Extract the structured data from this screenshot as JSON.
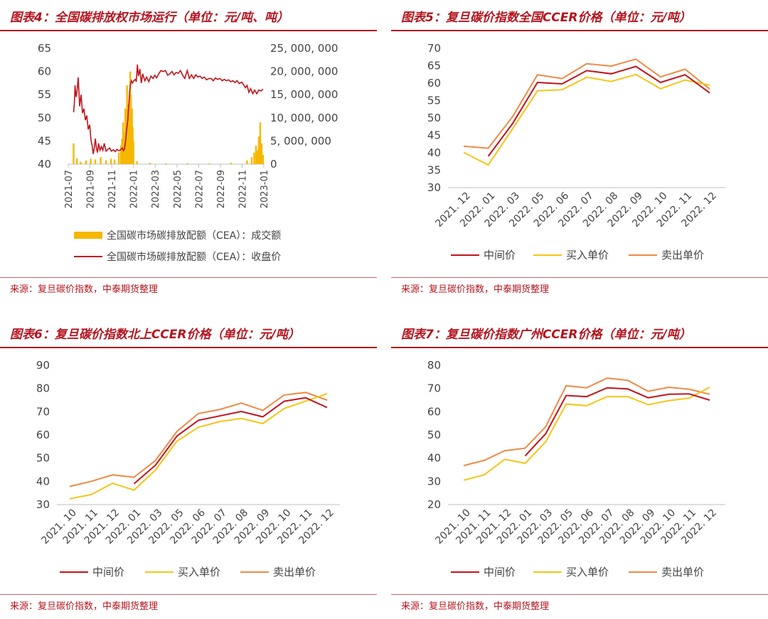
{
  "panels": [
    {
      "title": "图表4：全国碳排放权市场运行（单位：元/吨、吨）",
      "source": "来源：复旦碳价指数，中泰期货整理"
    },
    {
      "title": "图表5：复旦碳价指数全国CCER价格（单位：元/吨）",
      "source": "来源：复旦碳价指数，中泰期货整理"
    },
    {
      "title": "图表6：复旦碳价指数北上CCER价格（单位：元/吨）",
      "source": "来源：复旦碳价指数，中泰期货整理"
    },
    {
      "title": "图表7：复旦碳价指数广州CCER价格（单位：元/吨）",
      "source": "来源：复旦碳价指数，中泰期货整理"
    }
  ],
  "colors": {
    "mid": "#c0141c",
    "buy": "#f5c518",
    "sell": "#ee8a45",
    "volume": "#f5b800",
    "axis": "#bfbfbf",
    "text": "#444444"
  },
  "chart_data": [
    {
      "type": "bar+line",
      "title": "图表4：全国碳排放权市场运行（单位：元/吨、吨）",
      "x_ticks": [
        "2021-07",
        "2021-09",
        "2021-11",
        "2022-01",
        "2022-03",
        "2022-05",
        "2022-07",
        "2022-09",
        "2022-11",
        "2023-01"
      ],
      "y_left_ticks": [
        "40",
        "45",
        "50",
        "55",
        "60",
        "65"
      ],
      "y_left_range": [
        40,
        65
      ],
      "y_right_ticks": [
        "0",
        "5, 000, 000",
        "10, 000, 000",
        "15, 000, 000",
        "20, 000, 000",
        "25, 000, 000"
      ],
      "y_right_range": [
        0,
        25000000
      ],
      "legend": [
        "全国碳市场碳排放配额（CEA）：成交额",
        "全国碳市场碳排放配额（CEA）：收盘价"
      ],
      "close_price": [
        [
          "2021-07-16",
          51.2
        ],
        [
          "2021-07-18",
          53
        ],
        [
          "2021-07-20",
          57
        ],
        [
          "2021-07-23",
          54.5
        ],
        [
          "2021-07-26",
          56
        ],
        [
          "2021-07-29",
          58.7
        ],
        [
          "2021-08-02",
          52.5
        ],
        [
          "2021-08-06",
          55
        ],
        [
          "2021-08-10",
          51
        ],
        [
          "2021-08-14",
          52
        ],
        [
          "2021-08-18",
          49.5
        ],
        [
          "2021-08-22",
          50.5
        ],
        [
          "2021-08-26",
          47.5
        ],
        [
          "2021-08-30",
          48.5
        ],
        [
          "2021-09-03",
          45
        ],
        [
          "2021-09-06",
          44
        ],
        [
          "2021-09-09",
          42.2
        ],
        [
          "2021-09-12",
          43.5
        ],
        [
          "2021-09-15",
          45.5
        ],
        [
          "2021-09-18",
          43.5
        ],
        [
          "2021-09-21",
          42.5
        ],
        [
          "2021-09-24",
          44.5
        ],
        [
          "2021-09-28",
          43
        ],
        [
          "2021-10-02",
          43.8
        ],
        [
          "2021-10-06",
          43
        ],
        [
          "2021-10-10",
          44.5
        ],
        [
          "2021-10-15",
          42.8
        ],
        [
          "2021-10-20",
          43.2
        ],
        [
          "2021-10-25",
          43.5
        ],
        [
          "2021-10-30",
          42.8
        ],
        [
          "2021-11-05",
          43.1
        ],
        [
          "2021-11-10",
          42.7
        ],
        [
          "2021-11-15",
          43.2
        ],
        [
          "2021-11-20",
          42.9
        ],
        [
          "2021-11-25",
          43.1
        ],
        [
          "2021-11-30",
          43.5
        ],
        [
          "2021-12-03",
          42.9
        ],
        [
          "2021-12-06",
          43.3
        ],
        [
          "2021-12-09",
          45
        ],
        [
          "2021-12-12",
          47.5
        ],
        [
          "2021-12-15",
          49.5
        ],
        [
          "2021-12-18",
          53
        ],
        [
          "2021-12-20",
          55.5
        ],
        [
          "2021-12-22",
          57
        ],
        [
          "2021-12-25",
          58
        ],
        [
          "2021-12-28",
          57.5
        ],
        [
          "2022-01-01",
          58
        ],
        [
          "2022-01-05",
          58.3
        ],
        [
          "2022-01-08",
          57.8
        ],
        [
          "2022-01-11",
          61.5
        ],
        [
          "2022-01-14",
          59
        ],
        [
          "2022-01-18",
          60.5
        ],
        [
          "2022-01-22",
          57.5
        ],
        [
          "2022-01-26",
          59.5
        ],
        [
          "2022-02-01",
          58
        ],
        [
          "2022-02-06",
          58.8
        ],
        [
          "2022-02-12",
          57.8
        ],
        [
          "2022-02-18",
          59
        ],
        [
          "2022-02-24",
          58.5
        ],
        [
          "2022-03-01",
          59.2
        ],
        [
          "2022-03-06",
          58.6
        ],
        [
          "2022-03-12",
          59.5
        ],
        [
          "2022-03-18",
          60.2
        ],
        [
          "2022-03-24",
          60
        ],
        [
          "2022-03-31",
          60.2
        ],
        [
          "2022-04-06",
          59.2
        ],
        [
          "2022-04-12",
          59.5
        ],
        [
          "2022-04-18",
          60
        ],
        [
          "2022-04-24",
          59.3
        ],
        [
          "2022-04-30",
          59.8
        ],
        [
          "2022-05-06",
          59.6
        ],
        [
          "2022-05-12",
          60.2
        ],
        [
          "2022-05-18",
          59.2
        ],
        [
          "2022-05-24",
          58.5
        ],
        [
          "2022-05-31",
          60.2
        ],
        [
          "2022-06-06",
          58.5
        ],
        [
          "2022-06-12",
          59.3
        ],
        [
          "2022-06-18",
          58.5
        ],
        [
          "2022-06-24",
          59.3
        ],
        [
          "2022-06-30",
          58.8
        ],
        [
          "2022-07-06",
          59
        ],
        [
          "2022-07-12",
          58.5
        ],
        [
          "2022-07-18",
          58.8
        ],
        [
          "2022-07-24",
          58.2
        ],
        [
          "2022-07-31",
          58.5
        ],
        [
          "2022-08-06",
          58.5
        ],
        [
          "2022-08-12",
          58
        ],
        [
          "2022-08-18",
          58.6
        ],
        [
          "2022-08-24",
          58.3
        ],
        [
          "2022-08-31",
          58.5
        ],
        [
          "2022-09-06",
          58
        ],
        [
          "2022-09-12",
          58.3
        ],
        [
          "2022-09-18",
          58
        ],
        [
          "2022-09-24",
          58.2
        ],
        [
          "2022-09-30",
          57.8
        ],
        [
          "2022-10-06",
          58
        ],
        [
          "2022-10-12",
          57.6
        ],
        [
          "2022-10-18",
          58
        ],
        [
          "2022-10-24",
          57.4
        ],
        [
          "2022-10-31",
          57.7
        ],
        [
          "2022-11-05",
          57.2
        ],
        [
          "2022-11-10",
          56.5
        ],
        [
          "2022-11-15",
          57
        ],
        [
          "2022-11-20",
          55.5
        ],
        [
          "2022-11-25",
          56.3
        ],
        [
          "2022-12-01",
          55.2
        ],
        [
          "2022-12-06",
          56
        ],
        [
          "2022-12-12",
          55.2
        ],
        [
          "2022-12-18",
          56
        ],
        [
          "2022-12-24",
          55.8
        ],
        [
          "2022-12-30",
          56.2
        ]
      ],
      "volume": [
        [
          "2021-07-16",
          4500000
        ],
        [
          "2021-07-25",
          1200000
        ],
        [
          "2021-08-05",
          500000
        ],
        [
          "2021-08-20",
          800000
        ],
        [
          "2021-09-02",
          1200000
        ],
        [
          "2021-09-15",
          1000000
        ],
        [
          "2021-09-30",
          1500000
        ],
        [
          "2021-10-15",
          800000
        ],
        [
          "2021-10-29",
          1200000
        ],
        [
          "2021-11-08",
          1000000
        ],
        [
          "2021-11-20",
          2500000
        ],
        [
          "2021-11-26",
          4000000
        ],
        [
          "2021-11-29",
          5500000
        ],
        [
          "2021-12-02",
          9000000
        ],
        [
          "2021-12-05",
          7000000
        ],
        [
          "2021-12-08",
          12000000
        ],
        [
          "2021-12-10",
          10000000
        ],
        [
          "2021-12-13",
          17000000
        ],
        [
          "2021-12-15",
          7000000
        ],
        [
          "2021-12-17",
          13000000
        ],
        [
          "2021-12-20",
          11000000
        ],
        [
          "2021-12-22",
          20000000
        ],
        [
          "2021-12-24",
          15000000
        ],
        [
          "2021-12-27",
          12000000
        ],
        [
          "2021-12-29",
          8000000
        ],
        [
          "2021-12-31",
          5000000
        ],
        [
          "2022-01-10",
          600000
        ],
        [
          "2022-02-15",
          300000
        ],
        [
          "2022-04-01",
          200000
        ],
        [
          "2022-06-01",
          200000
        ],
        [
          "2022-08-01",
          200000
        ],
        [
          "2022-10-01",
          300000
        ],
        [
          "2022-11-15",
          800000
        ],
        [
          "2022-11-28",
          1500000
        ],
        [
          "2022-12-05",
          2500000
        ],
        [
          "2022-12-10",
          4000000
        ],
        [
          "2022-12-14",
          3000000
        ],
        [
          "2022-12-18",
          6000000
        ],
        [
          "2022-12-22",
          9000000
        ],
        [
          "2022-12-26",
          4500000
        ],
        [
          "2022-12-30",
          2000000
        ]
      ]
    },
    {
      "type": "line",
      "title": "图表5：复旦碳价指数全国CCER价格（单位：元/吨）",
      "categories": [
        "2021. 12",
        "2022. 01",
        "2022. 03",
        "2022. 05",
        "2022. 06",
        "2022. 07",
        "2022. 08",
        "2022. 09",
        "2022. 10",
        "2022. 11",
        "2022. 12"
      ],
      "y_ticks": [
        "30",
        "35",
        "40",
        "45",
        "50",
        "55",
        "60",
        "65",
        "70"
      ],
      "ylim": [
        30,
        70
      ],
      "series": [
        {
          "name": "中间价",
          "values": [
            null,
            39,
            48.5,
            60.2,
            59.8,
            63.6,
            62.7,
            64.8,
            60.2,
            62.4,
            57.2
          ]
        },
        {
          "name": "买入单价",
          "values": [
            40.1,
            36.5,
            47,
            57.8,
            58.1,
            61.7,
            60.5,
            62.5,
            58.4,
            60.9,
            59.4
          ]
        },
        {
          "name": "卖出单价",
          "values": [
            41.9,
            41.3,
            50.5,
            62.4,
            61.3,
            65.6,
            64.9,
            66.9,
            61.8,
            64,
            58.3
          ]
        }
      ]
    },
    {
      "type": "line",
      "title": "图表6：复旦碳价指数北上CCER价格（单位：元/吨）",
      "categories": [
        "2021. 10",
        "2021. 11",
        "2021. 12",
        "2022. 01",
        "2022. 03",
        "2022. 05",
        "2022. 06",
        "2022. 07",
        "2022. 08",
        "2022. 09",
        "2022. 10",
        "2022. 11",
        "2022. 12"
      ],
      "y_ticks": [
        "30",
        "40",
        "50",
        "60",
        "70",
        "80",
        "90"
      ],
      "ylim": [
        30,
        90
      ],
      "series": [
        {
          "name": "中间价",
          "values": [
            null,
            null,
            null,
            39,
            47,
            59.5,
            66.3,
            68.2,
            70.1,
            67.8,
            74.5,
            76,
            71.8
          ]
        },
        {
          "name": "买入单价",
          "values": [
            32.5,
            34.3,
            39.2,
            36.2,
            44.9,
            57.3,
            63.3,
            65.8,
            67.1,
            64.9,
            71.4,
            74.5,
            77.8
          ]
        },
        {
          "name": "卖出单价",
          "values": [
            37.8,
            40,
            42.8,
            41.8,
            49,
            61.5,
            69.2,
            71,
            73.7,
            70.6,
            77.2,
            78.3,
            75
          ]
        }
      ]
    },
    {
      "type": "line",
      "title": "图表7：复旦碳价指数广州CCER价格（单位：元/吨）",
      "categories": [
        "2021. 10",
        "2021. 11",
        "2021. 12",
        "2022. 01",
        "2022. 03",
        "2022. 05",
        "2022. 06",
        "2022. 07",
        "2022. 08",
        "2022. 09",
        "2022. 10",
        "2022. 11",
        "2022. 12"
      ],
      "y_ticks": [
        "20",
        "30",
        "40",
        "50",
        "60",
        "70",
        "80"
      ],
      "ylim": [
        20,
        80
      ],
      "series": [
        {
          "name": "中间价",
          "values": [
            null,
            null,
            null,
            41,
            50.5,
            67,
            66.5,
            70.3,
            69.8,
            66,
            67.5,
            67.7,
            65
          ]
        },
        {
          "name": "买入单价",
          "values": [
            30.5,
            32.8,
            39.5,
            37.8,
            47,
            63.3,
            62.6,
            66.5,
            66.5,
            63,
            64.8,
            65.9,
            70.5
          ]
        },
        {
          "name": "卖出单价",
          "values": [
            36.8,
            39,
            43.2,
            44.3,
            53.5,
            71.2,
            70.3,
            74.5,
            73.5,
            68.8,
            70.5,
            69.7,
            67.5
          ]
        }
      ]
    }
  ]
}
